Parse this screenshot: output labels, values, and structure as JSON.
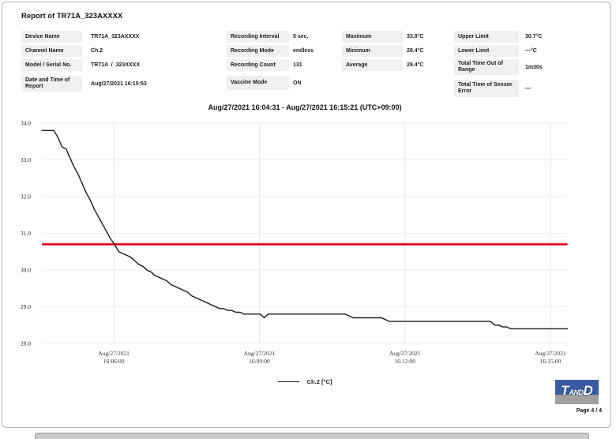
{
  "report": {
    "title": "Report of TR71A_323AXXXX",
    "page_label": "Page 4 / 4",
    "logo": {
      "part1": "T",
      "part2": "AND",
      "part3": "D"
    }
  },
  "info": {
    "col1": [
      {
        "label": "Device Name",
        "value": "TR71A_323AXXXX"
      },
      {
        "label": "Channel Name",
        "value": "Ch.2"
      },
      {
        "label": "Model / Serial No.",
        "value": "TR71A  /  323XXXX"
      },
      {
        "label": "Date and Time of Report",
        "value": "Aug/27/2021 16:15:53"
      }
    ],
    "col2": [
      {
        "label": "Recording Interval",
        "value": "5 sec."
      },
      {
        "label": "Recording Mode",
        "value": "endless"
      },
      {
        "label": "Recording Count",
        "value": "131"
      },
      {
        "label": "Vaccine Mode",
        "value": "ON"
      }
    ],
    "col3": [
      {
        "label": "Maximum",
        "value": "33.8°C"
      },
      {
        "label": "Minimum",
        "value": "28.4°C"
      },
      {
        "label": "Average",
        "value": "29.4°C"
      }
    ],
    "col4": [
      {
        "label": "Upper Limit",
        "value": "30.7°C"
      },
      {
        "label": "Lower Limit",
        "value": "—°C"
      },
      {
        "label": "Total Time Out of Range",
        "value": "1m30s"
      },
      {
        "label": "Total Time of Sensor Error",
        "value": "—"
      }
    ]
  },
  "chart_data": {
    "type": "line",
    "title": "Aug/27/2021 16:04:31 - Aug/27/2021 16:15:21 (UTC+09:00)",
    "xlabel": "",
    "ylabel": "",
    "ylim": [
      28.0,
      34.0
    ],
    "y_ticks": [
      34.0,
      33.0,
      32.0,
      31.0,
      30.0,
      29.0,
      28.0
    ],
    "x_start_time": "Aug/27/2021 16:04:31",
    "x_end_time": "Aug/27/2021 16:15:21",
    "x_end_sec": 650,
    "x_ticks": [
      {
        "sec": 89,
        "line1": "Aug/27/2021",
        "line2": "16:06:00"
      },
      {
        "sec": 269,
        "line1": "Aug/27/2021",
        "line2": "16:09:00"
      },
      {
        "sec": 449,
        "line1": "Aug/27/2021",
        "line2": "16:12:00"
      },
      {
        "sec": 629,
        "line1": "Aug/27/2021",
        "line2": "16:15:00"
      }
    ],
    "grid": true,
    "legend_position": "bottom-center",
    "upper_limit": {
      "value": 30.7,
      "color": "#e60012"
    },
    "legend": {
      "label": "Ch.2 [°C]"
    },
    "series": [
      {
        "name": "Ch.2 [°C]",
        "color": "#1a1a1a",
        "start_time": "16:04:31",
        "interval_sec": 5,
        "values": [
          33.8,
          33.8,
          33.8,
          33.8,
          33.6,
          33.35,
          33.3,
          33.05,
          32.8,
          32.6,
          32.35,
          32.1,
          31.9,
          31.65,
          31.45,
          31.25,
          31.05,
          30.85,
          30.7,
          30.5,
          30.45,
          30.4,
          30.35,
          30.25,
          30.15,
          30.1,
          30.0,
          29.95,
          29.85,
          29.8,
          29.75,
          29.7,
          29.6,
          29.55,
          29.5,
          29.45,
          29.4,
          29.3,
          29.25,
          29.2,
          29.15,
          29.1,
          29.05,
          29.0,
          28.95,
          28.95,
          28.9,
          28.9,
          28.85,
          28.85,
          28.8,
          28.8,
          28.8,
          28.8,
          28.8,
          28.7,
          28.8,
          28.8,
          28.8,
          28.8,
          28.8,
          28.8,
          28.8,
          28.8,
          28.8,
          28.8,
          28.8,
          28.8,
          28.8,
          28.8,
          28.8,
          28.8,
          28.8,
          28.8,
          28.8,
          28.8,
          28.75,
          28.7,
          28.7,
          28.7,
          28.7,
          28.7,
          28.7,
          28.7,
          28.7,
          28.65,
          28.6,
          28.6,
          28.6,
          28.6,
          28.6,
          28.6,
          28.6,
          28.6,
          28.6,
          28.6,
          28.6,
          28.6,
          28.6,
          28.6,
          28.6,
          28.6,
          28.6,
          28.6,
          28.6,
          28.6,
          28.6,
          28.6,
          28.6,
          28.6,
          28.6,
          28.6,
          28.5,
          28.5,
          28.45,
          28.45,
          28.4,
          28.4,
          28.4,
          28.4,
          28.4,
          28.4,
          28.4,
          28.4,
          28.4,
          28.4,
          28.4,
          28.4,
          28.4,
          28.4,
          28.4
        ]
      }
    ]
  }
}
